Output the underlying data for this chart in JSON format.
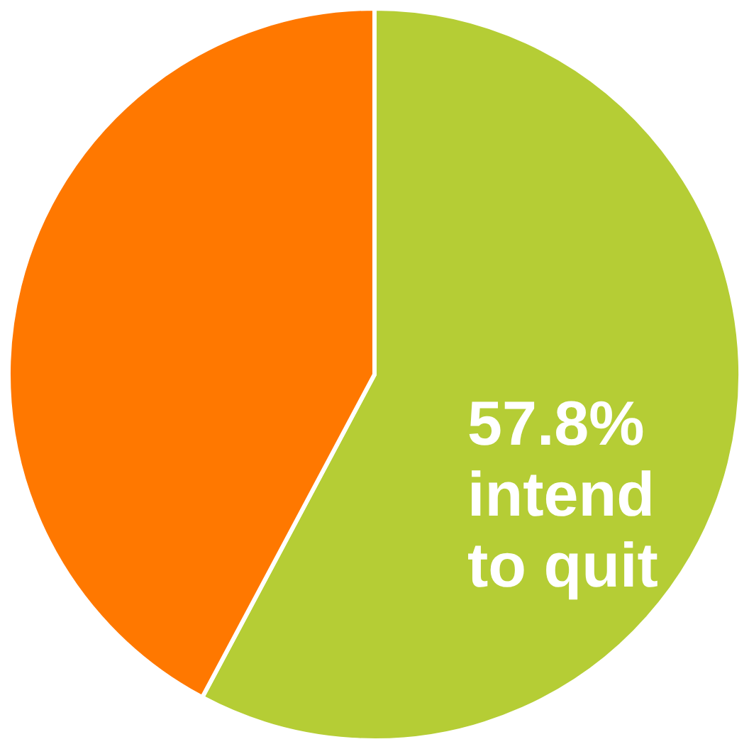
{
  "chart_data": {
    "type": "pie",
    "categories": [
      "intend to quit",
      null
    ],
    "values": [
      57.8,
      42.2
    ],
    "colors": [
      "#b5cd35",
      "#ff7800"
    ],
    "value_labels": [
      "57.8%",
      null
    ]
  }
}
